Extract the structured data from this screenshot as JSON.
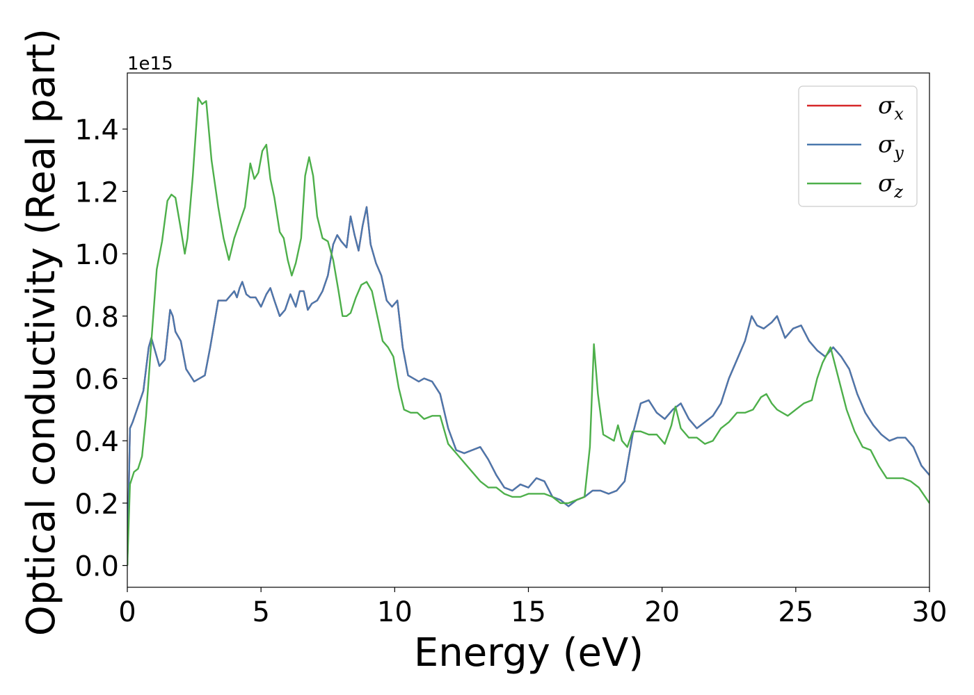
{
  "chart_data": {
    "type": "line",
    "xlabel": "Energy (eV)",
    "ylabel": "Optical conductivity (Real part)",
    "y_offset_label": "1e15",
    "xlim": [
      0,
      30
    ],
    "ylim": [
      -0.07,
      1.58
    ],
    "x_ticks": [
      0,
      5,
      10,
      15,
      20,
      25,
      30
    ],
    "x_tick_labels": [
      "0",
      "5",
      "10",
      "15",
      "20",
      "25",
      "30"
    ],
    "y_ticks": [
      0.0,
      0.2,
      0.4,
      0.6,
      0.8,
      1.0,
      1.2,
      1.4
    ],
    "y_tick_labels": [
      "0.0",
      "0.2",
      "0.4",
      "0.6",
      "0.8",
      "1.0",
      "1.2",
      "1.4"
    ],
    "grid": false,
    "legend_position": "top-right",
    "series": [
      {
        "name": "σ",
        "subscript": "x",
        "color": "#d62728",
        "x": [
          0,
          0.1,
          0.2,
          0.4,
          0.6,
          0.8,
          0.9,
          1.0,
          1.2,
          1.4,
          1.6,
          1.7,
          1.8,
          2.0,
          2.2,
          2.5,
          2.7,
          2.9,
          3.1,
          3.4,
          3.7,
          4.0,
          4.1,
          4.2,
          4.3,
          4.45,
          4.6,
          4.8,
          5.0,
          5.2,
          5.35,
          5.5,
          5.7,
          5.9,
          6.1,
          6.3,
          6.45,
          6.6,
          6.75,
          6.9,
          7.1,
          7.3,
          7.5,
          7.7,
          7.85,
          8.0,
          8.2,
          8.35,
          8.5,
          8.65,
          8.8,
          8.95,
          9.1,
          9.3,
          9.5,
          9.7,
          9.9,
          10.1,
          10.3,
          10.5,
          10.7,
          10.9,
          11.1,
          11.4,
          11.7,
          12.0,
          12.3,
          12.6,
          12.9,
          13.2,
          13.5,
          13.8,
          14.1,
          14.4,
          14.7,
          15.0,
          15.3,
          15.6,
          15.9,
          16.2,
          16.5,
          16.8,
          17.1,
          17.4,
          17.7,
          18.0,
          18.3,
          18.6,
          18.9,
          19.2,
          19.5,
          19.8,
          20.1,
          20.4,
          20.7,
          21.0,
          21.3,
          21.6,
          21.9,
          22.2,
          22.5,
          22.8,
          23.1,
          23.35,
          23.55,
          23.8,
          24.1,
          24.3,
          24.6,
          24.9,
          25.2,
          25.5,
          25.8,
          26.1,
          26.4,
          26.7,
          27.0,
          27.3,
          27.6,
          27.9,
          28.2,
          28.5,
          28.8,
          29.1,
          29.4,
          29.7,
          30.0
        ],
        "values": [
          0,
          0.44,
          0.46,
          0.51,
          0.56,
          0.7,
          0.73,
          0.7,
          0.64,
          0.66,
          0.82,
          0.8,
          0.75,
          0.72,
          0.63,
          0.59,
          0.6,
          0.61,
          0.7,
          0.85,
          0.85,
          0.88,
          0.86,
          0.89,
          0.91,
          0.87,
          0.86,
          0.86,
          0.83,
          0.87,
          0.89,
          0.85,
          0.8,
          0.82,
          0.87,
          0.83,
          0.88,
          0.88,
          0.82,
          0.84,
          0.85,
          0.88,
          0.93,
          1.03,
          1.06,
          1.04,
          1.02,
          1.12,
          1.06,
          1.01,
          1.09,
          1.15,
          1.03,
          0.97,
          0.93,
          0.85,
          0.83,
          0.85,
          0.7,
          0.61,
          0.6,
          0.59,
          0.6,
          0.59,
          0.55,
          0.44,
          0.37,
          0.36,
          0.37,
          0.38,
          0.34,
          0.29,
          0.25,
          0.24,
          0.26,
          0.25,
          0.28,
          0.27,
          0.22,
          0.21,
          0.19,
          0.21,
          0.22,
          0.24,
          0.24,
          0.23,
          0.24,
          0.27,
          0.42,
          0.52,
          0.53,
          0.49,
          0.47,
          0.5,
          0.52,
          0.47,
          0.44,
          0.46,
          0.48,
          0.52,
          0.6,
          0.66,
          0.72,
          0.8,
          0.77,
          0.76,
          0.78,
          0.8,
          0.73,
          0.76,
          0.77,
          0.72,
          0.69,
          0.67,
          0.7,
          0.67,
          0.63,
          0.55,
          0.49,
          0.45,
          0.42,
          0.4,
          0.41,
          0.41,
          0.38,
          0.32,
          0.29
        ]
      },
      {
        "name": "σ",
        "subscript": "y",
        "color": "#4a78ad",
        "x": [
          0,
          0.1,
          0.2,
          0.4,
          0.6,
          0.8,
          0.9,
          1.0,
          1.2,
          1.4,
          1.6,
          1.7,
          1.8,
          2.0,
          2.2,
          2.5,
          2.7,
          2.9,
          3.1,
          3.4,
          3.7,
          4.0,
          4.1,
          4.2,
          4.3,
          4.45,
          4.6,
          4.8,
          5.0,
          5.2,
          5.35,
          5.5,
          5.7,
          5.9,
          6.1,
          6.3,
          6.45,
          6.6,
          6.75,
          6.9,
          7.1,
          7.3,
          7.5,
          7.7,
          7.85,
          8.0,
          8.2,
          8.35,
          8.5,
          8.65,
          8.8,
          8.95,
          9.1,
          9.3,
          9.5,
          9.7,
          9.9,
          10.1,
          10.3,
          10.5,
          10.7,
          10.9,
          11.1,
          11.4,
          11.7,
          12.0,
          12.3,
          12.6,
          12.9,
          13.2,
          13.5,
          13.8,
          14.1,
          14.4,
          14.7,
          15.0,
          15.3,
          15.6,
          15.9,
          16.2,
          16.5,
          16.8,
          17.1,
          17.4,
          17.7,
          18.0,
          18.3,
          18.6,
          18.9,
          19.2,
          19.5,
          19.8,
          20.1,
          20.4,
          20.7,
          21.0,
          21.3,
          21.6,
          21.9,
          22.2,
          22.5,
          22.8,
          23.1,
          23.35,
          23.55,
          23.8,
          24.1,
          24.3,
          24.6,
          24.9,
          25.2,
          25.5,
          25.8,
          26.1,
          26.4,
          26.7,
          27.0,
          27.3,
          27.6,
          27.9,
          28.2,
          28.5,
          28.8,
          29.1,
          29.4,
          29.7,
          30.0
        ],
        "values": [
          0,
          0.44,
          0.46,
          0.51,
          0.56,
          0.7,
          0.73,
          0.7,
          0.64,
          0.66,
          0.82,
          0.8,
          0.75,
          0.72,
          0.63,
          0.59,
          0.6,
          0.61,
          0.7,
          0.85,
          0.85,
          0.88,
          0.86,
          0.89,
          0.91,
          0.87,
          0.86,
          0.86,
          0.83,
          0.87,
          0.89,
          0.85,
          0.8,
          0.82,
          0.87,
          0.83,
          0.88,
          0.88,
          0.82,
          0.84,
          0.85,
          0.88,
          0.93,
          1.03,
          1.06,
          1.04,
          1.02,
          1.12,
          1.06,
          1.01,
          1.09,
          1.15,
          1.03,
          0.97,
          0.93,
          0.85,
          0.83,
          0.85,
          0.7,
          0.61,
          0.6,
          0.59,
          0.6,
          0.59,
          0.55,
          0.44,
          0.37,
          0.36,
          0.37,
          0.38,
          0.34,
          0.29,
          0.25,
          0.24,
          0.26,
          0.25,
          0.28,
          0.27,
          0.22,
          0.21,
          0.19,
          0.21,
          0.22,
          0.24,
          0.24,
          0.23,
          0.24,
          0.27,
          0.42,
          0.52,
          0.53,
          0.49,
          0.47,
          0.5,
          0.52,
          0.47,
          0.44,
          0.46,
          0.48,
          0.52,
          0.6,
          0.66,
          0.72,
          0.8,
          0.77,
          0.76,
          0.78,
          0.8,
          0.73,
          0.76,
          0.77,
          0.72,
          0.69,
          0.67,
          0.7,
          0.67,
          0.63,
          0.55,
          0.49,
          0.45,
          0.42,
          0.4,
          0.41,
          0.41,
          0.38,
          0.32,
          0.29
        ]
      },
      {
        "name": "σ",
        "subscript": "z",
        "color": "#4daf4a",
        "x": [
          0,
          0.1,
          0.25,
          0.4,
          0.55,
          0.7,
          0.9,
          1.1,
          1.3,
          1.5,
          1.65,
          1.8,
          2.0,
          2.15,
          2.25,
          2.45,
          2.65,
          2.8,
          2.95,
          3.15,
          3.4,
          3.6,
          3.8,
          4.0,
          4.2,
          4.4,
          4.6,
          4.75,
          4.9,
          5.05,
          5.2,
          5.35,
          5.5,
          5.7,
          5.85,
          6.0,
          6.15,
          6.3,
          6.5,
          6.65,
          6.8,
          6.95,
          7.1,
          7.3,
          7.5,
          7.7,
          7.9,
          8.05,
          8.2,
          8.35,
          8.55,
          8.75,
          8.95,
          9.15,
          9.35,
          9.55,
          9.75,
          9.95,
          10.15,
          10.35,
          10.6,
          10.85,
          11.1,
          11.4,
          11.7,
          12.0,
          12.3,
          12.6,
          12.9,
          13.2,
          13.5,
          13.8,
          14.1,
          14.4,
          14.7,
          15.0,
          15.3,
          15.6,
          15.9,
          16.2,
          16.5,
          16.8,
          17.1,
          17.3,
          17.45,
          17.6,
          17.8,
          18.0,
          18.2,
          18.35,
          18.5,
          18.7,
          18.9,
          19.2,
          19.5,
          19.8,
          20.1,
          20.35,
          20.5,
          20.7,
          21.0,
          21.3,
          21.6,
          21.9,
          22.2,
          22.5,
          22.8,
          23.1,
          23.4,
          23.7,
          23.9,
          24.1,
          24.3,
          24.5,
          24.7,
          25.0,
          25.3,
          25.6,
          25.8,
          26.0,
          26.3,
          26.6,
          26.9,
          27.2,
          27.5,
          27.8,
          28.1,
          28.4,
          28.7,
          29.0,
          29.3,
          29.6,
          30.0
        ],
        "values": [
          0,
          0.26,
          0.3,
          0.31,
          0.35,
          0.48,
          0.72,
          0.95,
          1.04,
          1.17,
          1.19,
          1.18,
          1.08,
          1.0,
          1.05,
          1.25,
          1.5,
          1.48,
          1.49,
          1.3,
          1.15,
          1.05,
          0.98,
          1.05,
          1.1,
          1.15,
          1.29,
          1.24,
          1.26,
          1.33,
          1.35,
          1.24,
          1.18,
          1.07,
          1.05,
          0.98,
          0.93,
          0.97,
          1.05,
          1.25,
          1.31,
          1.25,
          1.12,
          1.05,
          1.04,
          0.98,
          0.88,
          0.8,
          0.8,
          0.81,
          0.86,
          0.9,
          0.91,
          0.88,
          0.8,
          0.72,
          0.7,
          0.67,
          0.57,
          0.5,
          0.49,
          0.49,
          0.47,
          0.48,
          0.48,
          0.39,
          0.36,
          0.33,
          0.3,
          0.27,
          0.25,
          0.25,
          0.23,
          0.22,
          0.22,
          0.23,
          0.23,
          0.23,
          0.22,
          0.2,
          0.2,
          0.21,
          0.22,
          0.38,
          0.71,
          0.55,
          0.42,
          0.41,
          0.4,
          0.45,
          0.4,
          0.38,
          0.43,
          0.43,
          0.42,
          0.42,
          0.39,
          0.45,
          0.51,
          0.44,
          0.41,
          0.41,
          0.39,
          0.4,
          0.44,
          0.46,
          0.49,
          0.49,
          0.5,
          0.54,
          0.55,
          0.52,
          0.5,
          0.49,
          0.48,
          0.5,
          0.52,
          0.53,
          0.6,
          0.65,
          0.7,
          0.6,
          0.5,
          0.43,
          0.38,
          0.37,
          0.32,
          0.28,
          0.28,
          0.28,
          0.27,
          0.25,
          0.2
        ]
      }
    ]
  }
}
